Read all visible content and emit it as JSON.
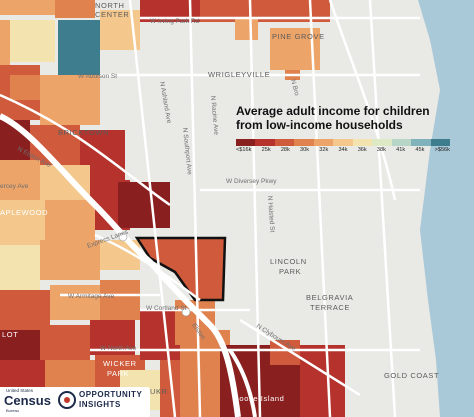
{
  "legend": {
    "title_line1": "Average adult income for children",
    "title_line2": "from low-income households",
    "bins": [
      "<$16k",
      "25k",
      "28k",
      "30k",
      "32k",
      "34k",
      "36k",
      "38k",
      "41k",
      "45k",
      ">$56k"
    ],
    "colors": [
      "#8a1f1f",
      "#b5332c",
      "#cf5a3c",
      "#e0824e",
      "#eda469",
      "#f4c88c",
      "#f3e3ae",
      "#dce9c4",
      "#b8d6c8",
      "#7fb2bb",
      "#3d7d8e"
    ]
  },
  "neighborhoods": {
    "north_center_1": "NORTH",
    "north_center_2": "CENTER",
    "pine_grove": "PINE GROVE",
    "wrigleyville": "WRIGLEYVILLE",
    "bricktown": "BRICKTOWN",
    "lincoln_park_1": "LINCOLN",
    "lincoln_park_2": "PARK",
    "belgravia_1": "BELGRAVIA",
    "belgravia_2": "TERRACE",
    "gold_coast": "GOLD COAST",
    "wicker_1": "WICKER",
    "wicker_2": "PARK",
    "goose_island": "Goose Island",
    "ukrainian": "UKR",
    "lot": "LOT",
    "maplewood": "APLEWOOD"
  },
  "streets": {
    "irving_park": "W Irving Park Rd",
    "addison": "W Addison St",
    "diversey": "W Diversey Pkwy",
    "elston": "N Elston Ave",
    "fullerton": "ercey Ave",
    "express_lanes": "Express Lanes",
    "armitage": "W Armitage Ave",
    "cortland": "W Cortland St",
    "north_ave": "W North Ave",
    "clybourn": "N Clybourn Ave",
    "ashland": "N Ashland Ave",
    "southport": "N Southport Ave",
    "racine": "N Racine Ave",
    "halsted": "N Halsted St",
    "elston_lower": "Elston",
    "broadway": "N Bro"
  },
  "logos": {
    "census_top": "United States",
    "census": "Census",
    "census_sub": "Bureau",
    "oi_line1": "OPPORTUNITY",
    "oi_line2": "INSIGHTS"
  },
  "colors": {
    "land": "#e9e9e6",
    "water": "#a9c8d8",
    "highlight_outline": "#111111"
  }
}
